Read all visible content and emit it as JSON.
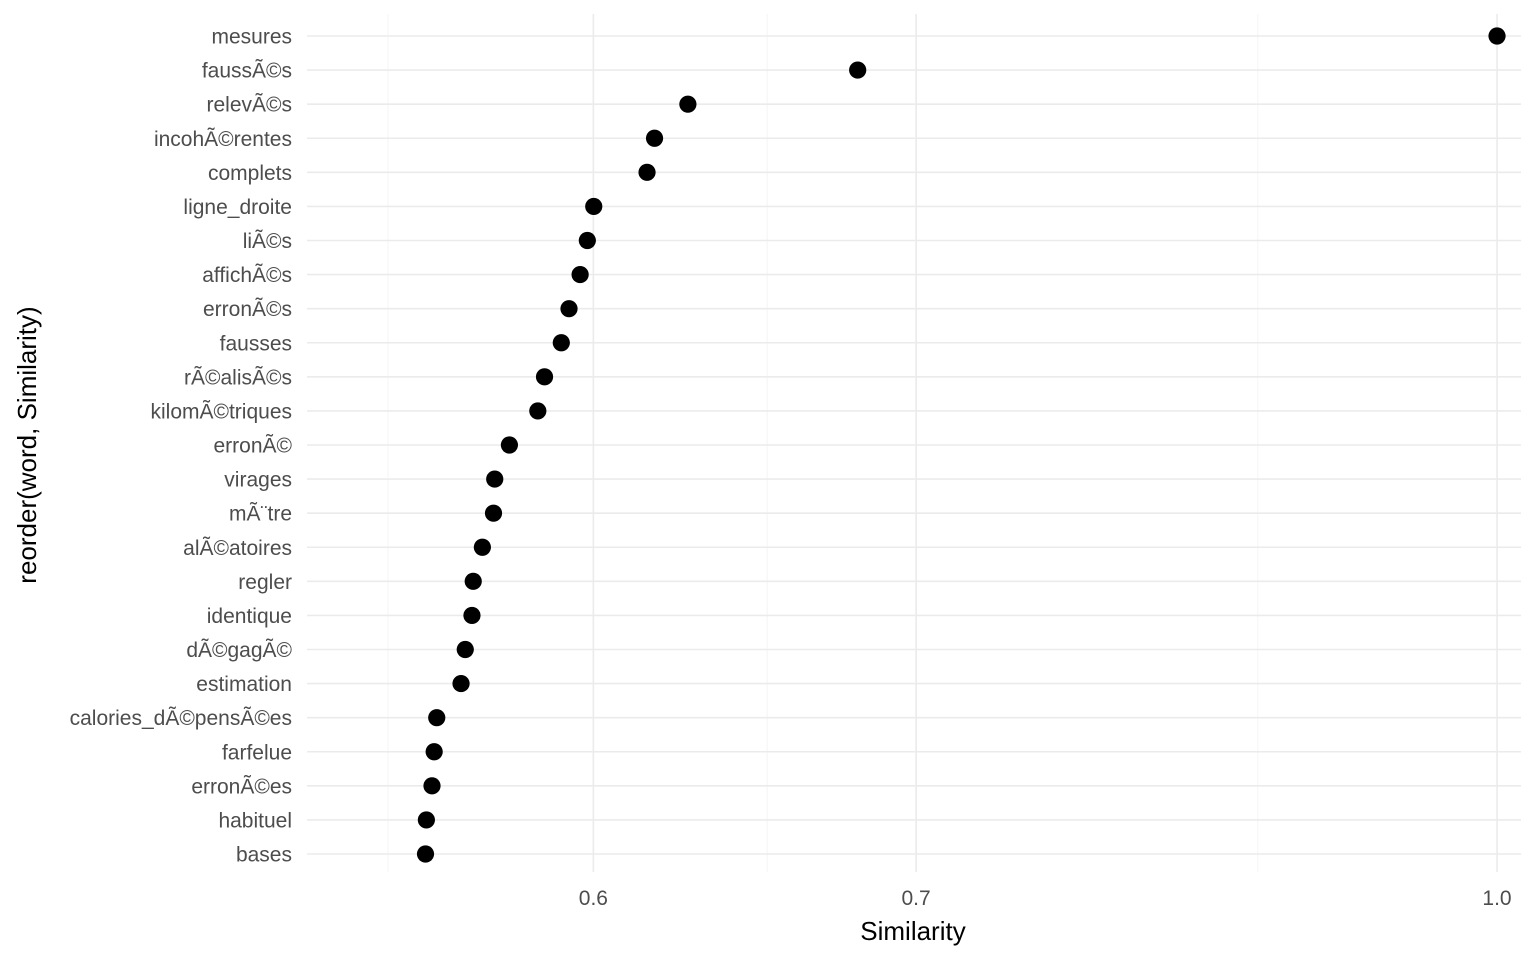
{
  "chart_data": {
    "type": "scatter",
    "title": "",
    "xlabel": "Similarity",
    "ylabel": "reorder(word, Similarity)",
    "xlim": [
      0.5325,
      1.018
    ],
    "x_scale": "reciprocal",
    "x_ticks": [
      {
        "value": 0.6,
        "label": "0.6"
      },
      {
        "value": 0.7,
        "label": "0.7"
      },
      {
        "value": 1.0,
        "label": "1.0"
      }
    ],
    "x_minor_ticks": [
      0.55,
      0.65,
      0.85
    ],
    "grid": true,
    "legend": "none",
    "point_color": "#000000",
    "grid_color": "#ebebeb",
    "points": [
      {
        "word": "mesures",
        "similarity": 1.0
      },
      {
        "word": "faussÃ©s",
        "similarity": 0.6795
      },
      {
        "word": "relevÃ©s",
        "similarity": 0.6262
      },
      {
        "word": "incohÃ©rentes",
        "similarity": 0.6167
      },
      {
        "word": "complets",
        "similarity": 0.6146
      },
      {
        "word": "ligne_droite",
        "similarity": 0.6001
      },
      {
        "word": "liÃ©s",
        "similarity": 0.5984
      },
      {
        "word": "affichÃ©s",
        "similarity": 0.5965
      },
      {
        "word": "erronÃ©s",
        "similarity": 0.5936
      },
      {
        "word": "fausses",
        "similarity": 0.5916
      },
      {
        "word": "rÃ©alisÃ©s",
        "similarity": 0.5873
      },
      {
        "word": "kilomÃ©triques",
        "similarity": 0.5856
      },
      {
        "word": "erronÃ©",
        "similarity": 0.5785
      },
      {
        "word": "virages",
        "similarity": 0.5749
      },
      {
        "word": "mÃ¨tre",
        "similarity": 0.5746
      },
      {
        "word": "alÃ©atoires",
        "similarity": 0.5719
      },
      {
        "word": "regler",
        "similarity": 0.5697
      },
      {
        "word": "identique",
        "similarity": 0.5694
      },
      {
        "word": "dÃ©gagÃ©",
        "similarity": 0.5678
      },
      {
        "word": "estimation",
        "similarity": 0.5668
      },
      {
        "word": "calories_dÃ©pensÃ©es",
        "similarity": 0.5611
      },
      {
        "word": "farfelue",
        "similarity": 0.5605
      },
      {
        "word": "erronÃ©es",
        "similarity": 0.56
      },
      {
        "word": "habituel",
        "similarity": 0.5587
      },
      {
        "word": "bases",
        "similarity": 0.5585
      }
    ]
  }
}
